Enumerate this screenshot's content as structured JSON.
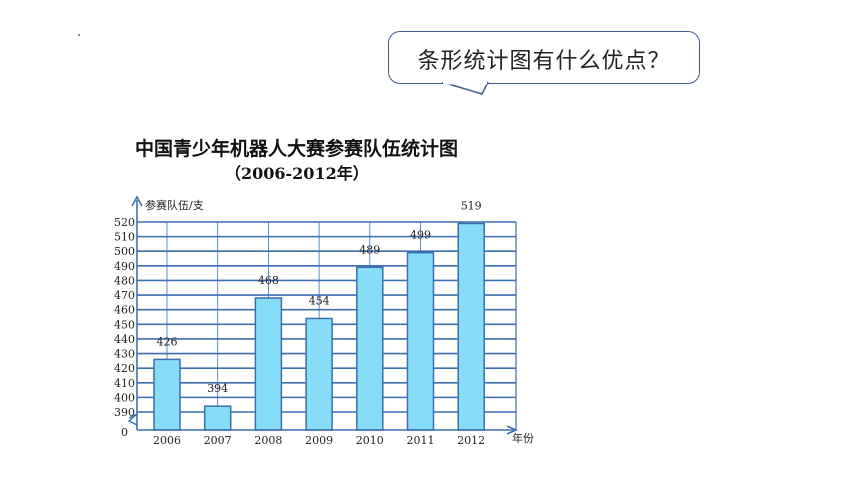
{
  "speech_bubble": {
    "text": "条形统计图有什么优点？"
  },
  "chart_data": {
    "type": "bar",
    "title": "中国青少年机器人大赛参赛队伍统计图",
    "subtitle": "（2006-2012年）",
    "ylabel": "参赛队伍/支",
    "xlabel": "年份",
    "categories": [
      "2006",
      "2007",
      "2008",
      "2009",
      "2010",
      "2011",
      "2012"
    ],
    "values": [
      426,
      394,
      468,
      454,
      489,
      499,
      519
    ],
    "y_ticks": [
      "390",
      "400",
      "410",
      "420",
      "430",
      "440",
      "450",
      "460",
      "470",
      "480",
      "490",
      "500",
      "510",
      "520"
    ],
    "y_origin_label": "0",
    "axis_break": true,
    "ylim": [
      380,
      520
    ],
    "grid": true,
    "colors": {
      "bar_fill": "#87dcf8",
      "bar_stroke": "#3a6fb0",
      "grid": "#3a6fb0",
      "axis": "#3a6fb0"
    }
  }
}
